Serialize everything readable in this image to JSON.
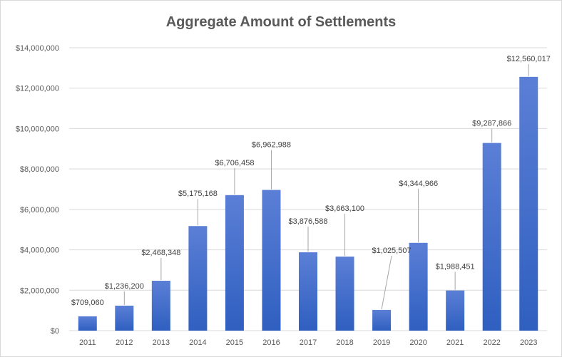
{
  "chart_data": {
    "type": "bar",
    "title": "Aggregate Amount of Settlements",
    "xlabel": "",
    "ylabel": "",
    "categories": [
      "2011",
      "2012",
      "2013",
      "2014",
      "2015",
      "2016",
      "2017",
      "2018",
      "2019",
      "2020",
      "2021",
      "2022",
      "2023"
    ],
    "values": [
      709060,
      1236200,
      2468348,
      5175168,
      6706458,
      6962988,
      3876588,
      3663100,
      1025507,
      4344966,
      1988451,
      9287866,
      12560017
    ],
    "data_labels": [
      "$709,060",
      "$1,236,200",
      "$2,468,348",
      "$5,175,168",
      "$6,706,458",
      "$6,962,988",
      "$3,876,588",
      "$3,663,100",
      "$1,025,507",
      "$4,344,966",
      "$1,988,451",
      "$9,287,866",
      "$12,560,017"
    ],
    "ylim": [
      0,
      14000000
    ],
    "yticks": [
      0,
      2000000,
      4000000,
      6000000,
      8000000,
      10000000,
      12000000,
      14000000
    ],
    "ytick_labels": [
      "$0",
      "$2,000,000",
      "$4,000,000",
      "$6,000,000",
      "$8,000,000",
      "$10,000,000",
      "$12,000,000",
      "$14,000,000"
    ],
    "grid": true,
    "legend": "none",
    "bar_color_top": "#5b7fd6",
    "bar_color_bottom": "#2f5fc0",
    "grid_color": "#d9d9d9",
    "text_color": "#595959"
  }
}
